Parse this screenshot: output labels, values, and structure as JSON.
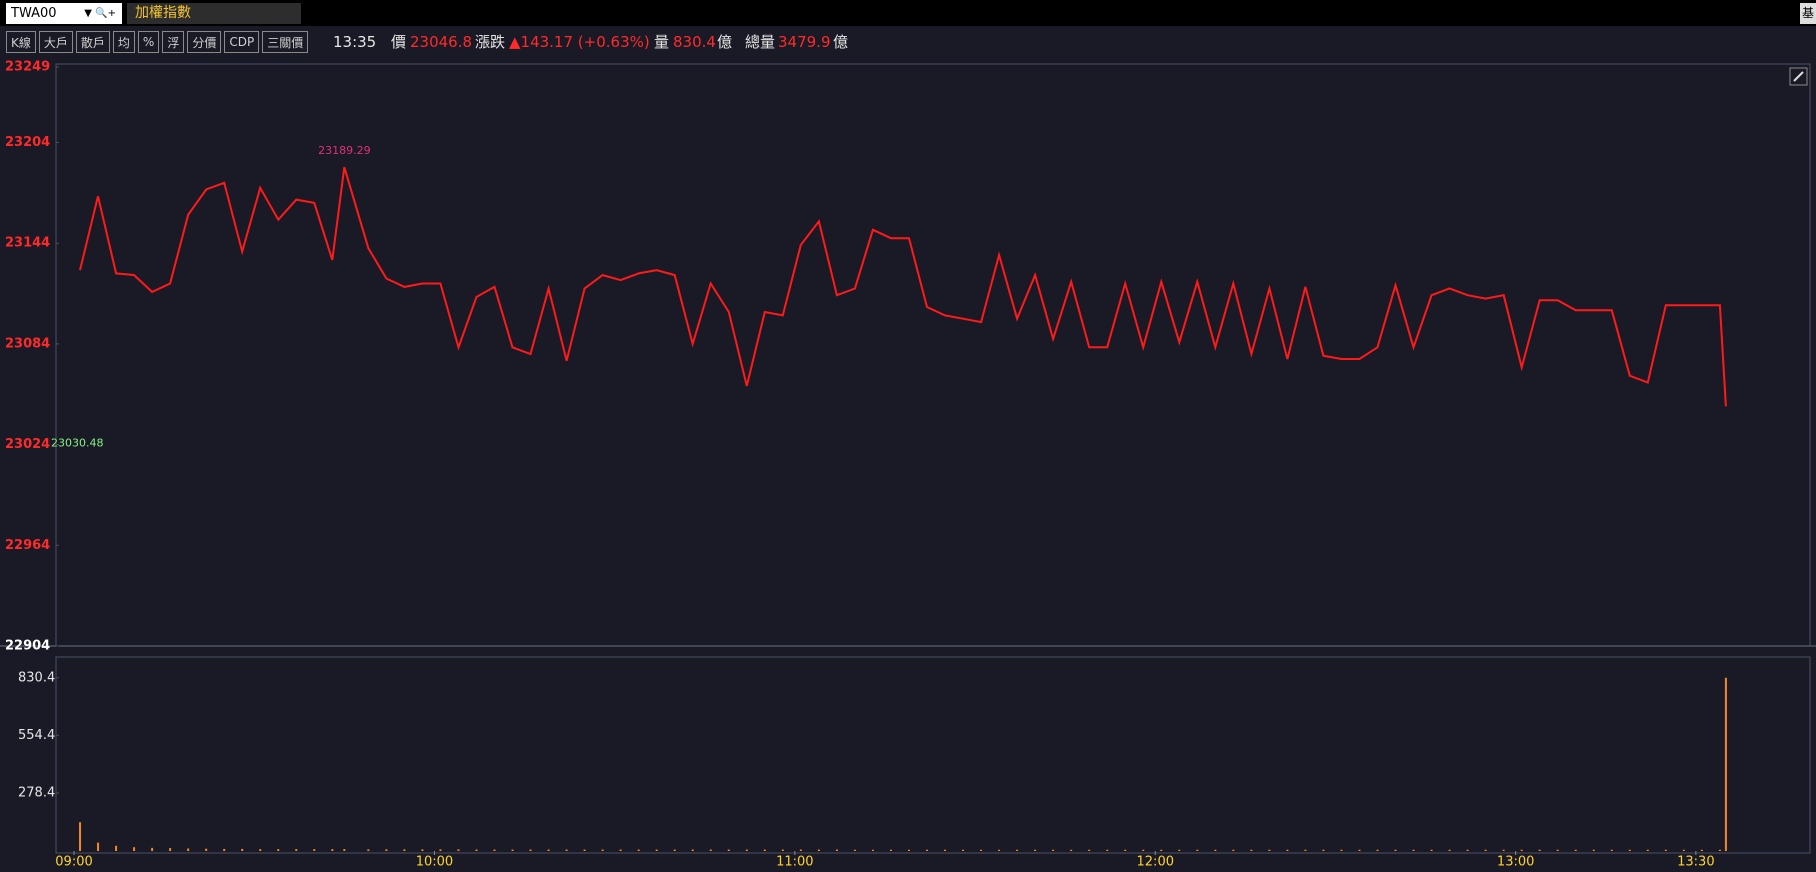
{
  "toolbar": {
    "symbol": "TWA00",
    "name": "加權指數",
    "corner": "基",
    "buttons": [
      "K線",
      "大戶",
      "散戶",
      "均",
      "%",
      "浮",
      "分價",
      "CDP",
      "三關價"
    ]
  },
  "quote": {
    "time": "13:35",
    "price_label": "價",
    "price": 23046.8,
    "change_label": "漲跌",
    "change": "▲143.17 (+0.63%)",
    "volume_label": "量",
    "volume": 830.4,
    "volume_unit": "億",
    "total_label": "總量",
    "total": 3479.9,
    "total_unit": "億"
  },
  "chart_data": [
    {
      "type": "line",
      "xlim": [
        "08:57",
        "13:49"
      ],
      "ylim": [
        22904,
        23249
      ],
      "yticks": [
        22904,
        22964,
        23024,
        23084,
        23144,
        23204,
        23249
      ],
      "reference": 23030.48,
      "x": [
        "09:01",
        "09:04",
        "09:07",
        "09:10",
        "09:13",
        "09:16",
        "09:19",
        "09:22",
        "09:25",
        "09:28",
        "09:31",
        "09:34",
        "09:37",
        "09:40",
        "09:43",
        "09:45",
        "09:49",
        "09:52",
        "09:55",
        "09:58",
        "10:01",
        "10:04",
        "10:07",
        "10:10",
        "10:13",
        "10:16",
        "10:19",
        "10:22",
        "10:25",
        "10:28",
        "10:31",
        "10:34",
        "10:37",
        "10:40",
        "10:43",
        "10:46",
        "10:49",
        "10:52",
        "10:55",
        "10:58",
        "11:01",
        "11:04",
        "11:07",
        "11:10",
        "11:13",
        "11:16",
        "11:19",
        "11:22",
        "11:25",
        "11:28",
        "11:31",
        "11:34",
        "11:37",
        "11:40",
        "11:43",
        "11:46",
        "11:49",
        "11:52",
        "11:55",
        "11:58",
        "12:01",
        "12:04",
        "12:07",
        "12:10",
        "12:13",
        "12:16",
        "12:19",
        "12:22",
        "12:25",
        "12:28",
        "12:31",
        "12:34",
        "12:37",
        "12:40",
        "12:43",
        "12:46",
        "12:49",
        "12:52",
        "12:55",
        "12:58",
        "13:01",
        "13:04",
        "13:07",
        "13:10",
        "13:13",
        "13:16",
        "13:19",
        "13:22",
        "13:25",
        "13:28",
        "13:31",
        "13:34",
        "13:35"
      ],
      "series": [
        {
          "color": "#ff1a1a",
          "values": [
            23128,
            23172,
            23126,
            23125,
            23115,
            23120,
            23161,
            23176,
            23180,
            23139,
            23177,
            23158,
            23170,
            23168,
            23134,
            23189.29,
            23141,
            23123,
            23118,
            23120,
            23120,
            23082,
            23112,
            23118,
            23082,
            23078,
            23117,
            23074,
            23117,
            23125,
            23122,
            23126,
            23128,
            23125,
            23084,
            23120,
            23103,
            23059,
            23103,
            23101,
            23143,
            23157,
            23113,
            23117,
            23152,
            23147,
            23147,
            23106,
            23101,
            23099,
            23097,
            23137,
            23099,
            23125,
            23087,
            23121,
            23082,
            23082,
            23120,
            23082,
            23121,
            23085,
            23121,
            23082,
            23120,
            23078,
            23117,
            23075,
            23118,
            23077,
            23075,
            23075,
            23082,
            23119,
            23082,
            23113,
            23117,
            23113,
            23111,
            23113,
            23070,
            23110,
            23110,
            23104,
            23104,
            23104,
            23065,
            23061,
            23107,
            23107,
            23107,
            23107,
            23046.8
          ]
        }
      ]
    },
    {
      "type": "bar",
      "xlim": [
        "08:57",
        "13:49"
      ],
      "ylim": [
        0,
        930
      ],
      "yticks": [
        278.4,
        554.4,
        830.4
      ],
      "xticks": [
        "09:00",
        "10:00",
        "11:00",
        "12:00",
        "13:00",
        "13:30"
      ],
      "color": "#f5891f",
      "x": [
        "09:01",
        "09:04",
        "09:07",
        "09:10",
        "09:13",
        "09:16",
        "09:19",
        "09:22",
        "09:25",
        "09:28",
        "09:31",
        "09:34",
        "09:37",
        "09:40",
        "09:43",
        "09:45",
        "09:49",
        "09:52",
        "09:55",
        "09:58",
        "10:01",
        "10:04",
        "10:07",
        "10:10",
        "10:13",
        "10:16",
        "10:19",
        "10:22",
        "10:25",
        "10:28",
        "10:31",
        "10:34",
        "10:37",
        "10:40",
        "10:43",
        "10:46",
        "10:49",
        "10:52",
        "10:55",
        "10:58",
        "11:01",
        "11:04",
        "11:07",
        "11:10",
        "11:13",
        "11:16",
        "11:19",
        "11:22",
        "11:25",
        "11:28",
        "11:31",
        "11:34",
        "11:37",
        "11:40",
        "11:43",
        "11:46",
        "11:49",
        "11:52",
        "11:55",
        "11:58",
        "12:01",
        "12:04",
        "12:07",
        "12:10",
        "12:13",
        "12:16",
        "12:19",
        "12:22",
        "12:25",
        "12:28",
        "12:31",
        "12:34",
        "12:37",
        "12:40",
        "12:43",
        "12:46",
        "12:49",
        "12:52",
        "12:55",
        "12:58",
        "13:01",
        "13:04",
        "13:07",
        "13:10",
        "13:13",
        "13:16",
        "13:19",
        "13:22",
        "13:25",
        "13:28",
        "13:31",
        "13:34",
        "13:35"
      ],
      "values": [
        138,
        40,
        25,
        18,
        15,
        14,
        12,
        11,
        10,
        10,
        9,
        9,
        9,
        9,
        9,
        9,
        8,
        8,
        8,
        8,
        8,
        8,
        7,
        7,
        7,
        7,
        7,
        7,
        7,
        7,
        7,
        7,
        7,
        7,
        7,
        7,
        7,
        7,
        7,
        7,
        7,
        7,
        7,
        6,
        6,
        6,
        6,
        6,
        6,
        6,
        6,
        6,
        6,
        6,
        6,
        6,
        6,
        6,
        6,
        6,
        6,
        6,
        6,
        6,
        6,
        6,
        6,
        6,
        6,
        6,
        6,
        6,
        6,
        6,
        6,
        6,
        6,
        6,
        6,
        6,
        6,
        6,
        6,
        6,
        6,
        6,
        6,
        6,
        6,
        6,
        6,
        6,
        830.4
      ]
    }
  ]
}
